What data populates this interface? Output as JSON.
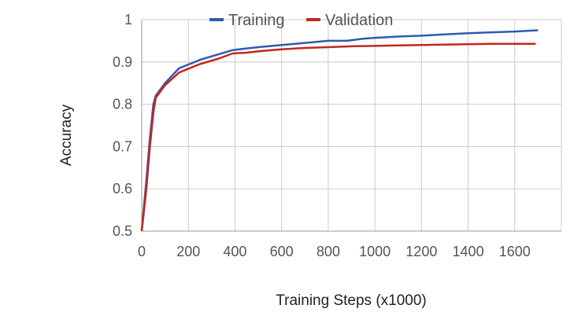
{
  "chart_data": {
    "type": "line",
    "title": "",
    "xlabel": "Training Steps (x1000)",
    "ylabel": "Accuracy",
    "xlim": [
      0,
      1800
    ],
    "ylim": [
      0.5,
      1
    ],
    "x_ticks": [
      0,
      200,
      400,
      600,
      800,
      1000,
      1200,
      1400,
      1600
    ],
    "y_ticks": [
      0.5,
      0.6,
      0.7,
      0.8,
      0.9,
      1
    ],
    "y_tick_labels": [
      "0.5",
      "0.6",
      "0.7",
      "0.8",
      "0.9",
      "1"
    ],
    "grid": true,
    "legend_position": "top",
    "series": [
      {
        "name": "Training",
        "color": "#2f5bb0",
        "points": [
          [
            0,
            0.5
          ],
          [
            8,
            0.55
          ],
          [
            20,
            0.62
          ],
          [
            35,
            0.72
          ],
          [
            50,
            0.8
          ],
          [
            60,
            0.82
          ],
          [
            100,
            0.85
          ],
          [
            160,
            0.885
          ],
          [
            250,
            0.905
          ],
          [
            330,
            0.918
          ],
          [
            390,
            0.928
          ],
          [
            450,
            0.932
          ],
          [
            500,
            0.935
          ],
          [
            600,
            0.94
          ],
          [
            700,
            0.945
          ],
          [
            800,
            0.95
          ],
          [
            880,
            0.95
          ],
          [
            950,
            0.955
          ],
          [
            1000,
            0.957
          ],
          [
            1100,
            0.96
          ],
          [
            1200,
            0.962
          ],
          [
            1300,
            0.965
          ],
          [
            1400,
            0.968
          ],
          [
            1500,
            0.97
          ],
          [
            1600,
            0.972
          ],
          [
            1700,
            0.975
          ]
        ]
      },
      {
        "name": "Validation",
        "color": "#c0271f",
        "points": [
          [
            0,
            0.5
          ],
          [
            8,
            0.54
          ],
          [
            20,
            0.6
          ],
          [
            35,
            0.7
          ],
          [
            50,
            0.78
          ],
          [
            60,
            0.815
          ],
          [
            100,
            0.845
          ],
          [
            160,
            0.875
          ],
          [
            250,
            0.895
          ],
          [
            330,
            0.908
          ],
          [
            390,
            0.92
          ],
          [
            450,
            0.922
          ],
          [
            500,
            0.925
          ],
          [
            600,
            0.93
          ],
          [
            700,
            0.933
          ],
          [
            800,
            0.935
          ],
          [
            900,
            0.937
          ],
          [
            1000,
            0.938
          ],
          [
            1100,
            0.939
          ],
          [
            1200,
            0.94
          ],
          [
            1300,
            0.941
          ],
          [
            1400,
            0.942
          ],
          [
            1500,
            0.943
          ],
          [
            1600,
            0.943
          ],
          [
            1690,
            0.943
          ]
        ]
      }
    ]
  }
}
